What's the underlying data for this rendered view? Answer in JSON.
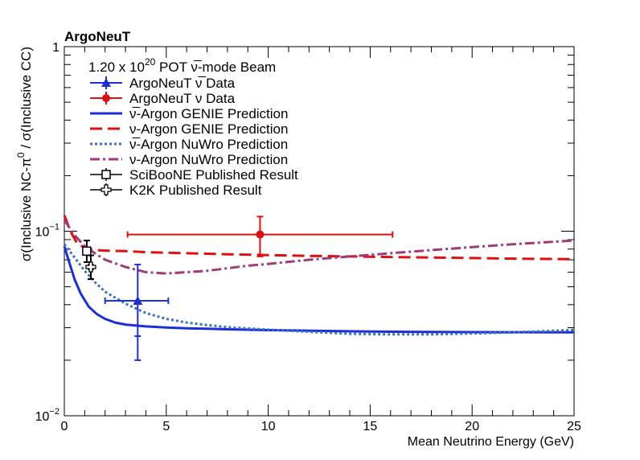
{
  "chart_data": {
    "type": "line",
    "title": "ArgoNeuT",
    "subtitle": {
      "base": "1.20 x 10",
      "exp": "20",
      "tail": " POT ν̅-mode Beam"
    },
    "xlabel": "Mean Neutrino Energy (GeV)",
    "ylabel_parts": {
      "pre": "σ(Inclusive NC-π",
      "sup": "0",
      "post": " / σ(Inclusive CC)"
    },
    "xlim": [
      0,
      25
    ],
    "ylim": [
      0.01,
      1
    ],
    "ylog": true,
    "grid": false,
    "legend_position": "top-left",
    "x_ticks": [
      0,
      5,
      10,
      15,
      20,
      25
    ],
    "x_tick_labels": [
      "0",
      "5",
      "10",
      "15",
      "20",
      "25"
    ],
    "y_tick_labels": [
      {
        "value": 1,
        "base": "1",
        "exp": ""
      },
      {
        "value": 0.1,
        "base": "10",
        "exp": "−1"
      },
      {
        "value": 0.01,
        "base": "10",
        "exp": "−2"
      }
    ],
    "series": [
      {
        "name": "ν̅-Argon GENIE Prediction",
        "color": "#1a2fd6",
        "style": "solid",
        "type": "line",
        "x": [
          0.0,
          0.2,
          0.5,
          0.8,
          1.2,
          1.6,
          2.0,
          2.5,
          3.0,
          4.0,
          5.0,
          6.0,
          7.0,
          8.0,
          10.0,
          12.0,
          15.0,
          20.0,
          25.0
        ],
        "y": [
          0.083,
          0.07,
          0.055,
          0.046,
          0.039,
          0.0355,
          0.0335,
          0.032,
          0.0312,
          0.0305,
          0.0301,
          0.0298,
          0.0296,
          0.0294,
          0.0291,
          0.0289,
          0.0286,
          0.0284,
          0.0283
        ]
      },
      {
        "name": "ν-Argon GENIE Prediction",
        "color": "#e01010",
        "style": "dashed",
        "type": "line",
        "x": [
          0.0,
          0.3,
          0.6,
          1.0,
          1.5,
          2.0,
          3.0,
          4.0,
          5.0,
          6.0,
          7.0,
          8.0,
          10.0,
          12.0,
          14.0,
          16.0,
          18.0,
          20.0,
          22.0,
          25.0
        ],
        "y": [
          0.122,
          0.1,
          0.087,
          0.081,
          0.079,
          0.0785,
          0.078,
          0.077,
          0.0765,
          0.076,
          0.0755,
          0.075,
          0.0742,
          0.0735,
          0.073,
          0.0725,
          0.072,
          0.0715,
          0.071,
          0.0705
        ]
      },
      {
        "name": "ν̅-Argon NuWro Prediction",
        "color": "#3a6fd0",
        "style": "dotted",
        "type": "line",
        "x": [
          0.0,
          0.5,
          1.0,
          1.5,
          2.0,
          3.0,
          4.0,
          5.0,
          6.0,
          7.0,
          8.0,
          10.0,
          12.0,
          14.0,
          16.0,
          18.0,
          20.0,
          22.0,
          25.0
        ],
        "y": [
          0.085,
          0.072,
          0.061,
          0.053,
          0.047,
          0.0405,
          0.036,
          0.0335,
          0.032,
          0.031,
          0.0302,
          0.0293,
          0.0285,
          0.0278,
          0.0276,
          0.0276,
          0.0279,
          0.0283,
          0.0292
        ]
      },
      {
        "name": "ν-Argon NuWro Prediction",
        "color": "#a03a78",
        "style": "dashdot",
        "type": "line",
        "x": [
          0.0,
          0.5,
          1.0,
          1.5,
          2.0,
          3.0,
          4.0,
          5.0,
          6.0,
          7.0,
          8.0,
          9.0,
          10.0,
          12.0,
          14.0,
          16.0,
          18.0,
          20.0,
          22.0,
          25.0
        ],
        "y": [
          0.115,
          0.095,
          0.083,
          0.076,
          0.07,
          0.064,
          0.06,
          0.059,
          0.06,
          0.061,
          0.063,
          0.065,
          0.0665,
          0.07,
          0.073,
          0.076,
          0.079,
          0.082,
          0.085,
          0.089
        ]
      },
      {
        "name": "ArgoNeuT ν̅ Data",
        "color": "#1a2fd6",
        "type": "points",
        "marker": "triangle",
        "points": [
          {
            "x": 3.6,
            "y": 0.042,
            "xlo": 2.0,
            "xhi": 5.1,
            "ylo": 0.02,
            "yhi": 0.066,
            "ysys": 0.027
          }
        ]
      },
      {
        "name": "ArgoNeuT ν Data",
        "color": "#e01010",
        "type": "points",
        "marker": "circle",
        "points": [
          {
            "x": 9.6,
            "y": 0.096,
            "xlo": 3.1,
            "xhi": 16.1,
            "ylo": 0.073,
            "yhi": 0.12
          }
        ]
      },
      {
        "name": "SciBooNE Published Result",
        "color": "#000000",
        "type": "points",
        "marker": "open-square",
        "points": [
          {
            "x": 1.1,
            "y": 0.078,
            "xlo": 1.0,
            "xhi": 1.2,
            "ylo": 0.068,
            "yhi": 0.089
          }
        ]
      },
      {
        "name": "K2K Published Result",
        "color": "#000000",
        "type": "points",
        "marker": "open-cross",
        "points": [
          {
            "x": 1.3,
            "y": 0.064,
            "xlo": 1.2,
            "xhi": 1.4,
            "ylo": 0.055,
            "yhi": 0.074
          }
        ]
      }
    ],
    "legend": [
      {
        "label": "ArgoNeuT ν̅ Data",
        "kind": "triangle",
        "color": "#1a2fd6"
      },
      {
        "label": "ArgoNeuT ν Data",
        "kind": "circle",
        "color": "#e01010"
      },
      {
        "label": "ν̅-Argon GENIE Prediction",
        "kind": "solid",
        "color": "#1a2fd6"
      },
      {
        "label": "ν-Argon GENIE Prediction",
        "kind": "dashed",
        "color": "#e01010"
      },
      {
        "label": "ν̅-Argon NuWro Prediction",
        "kind": "dotted",
        "color": "#3a6fd0"
      },
      {
        "label": "ν-Argon NuWro Prediction",
        "kind": "dashdot",
        "color": "#a03a78"
      },
      {
        "label": "SciBooNE Published Result",
        "kind": "open-square",
        "color": "#000000"
      },
      {
        "label": "K2K Published Result",
        "kind": "open-cross",
        "color": "#000000"
      }
    ]
  }
}
